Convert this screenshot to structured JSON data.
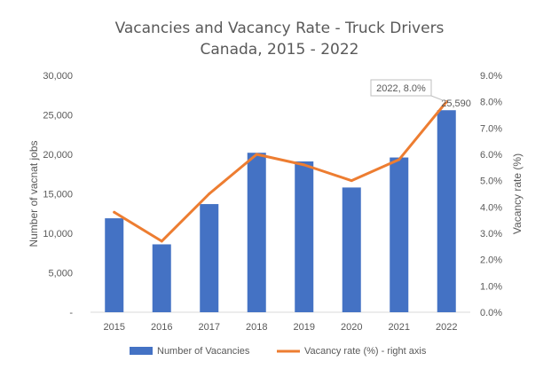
{
  "chart_data": {
    "type": "bar",
    "title": "Vacancies and Vacancy Rate - Truck Drivers",
    "subtitle": "Canada, 2015 - 2022",
    "categories": [
      "2015",
      "2016",
      "2017",
      "2018",
      "2019",
      "2020",
      "2021",
      "2022"
    ],
    "series": [
      {
        "name": "Number of Vacancies",
        "type": "bar",
        "axis": "left",
        "color": "#4472C4",
        "values": [
          11900,
          8600,
          13700,
          20200,
          19100,
          15800,
          19600,
          25590
        ]
      },
      {
        "name": "Vacancy rate (%) - right axis",
        "type": "line",
        "axis": "right",
        "color": "#ED7D31",
        "values": [
          3.8,
          2.7,
          4.5,
          6.0,
          5.6,
          5.0,
          5.8,
          8.0
        ]
      }
    ],
    "ylabel": "Number of vacnat jobs",
    "y2label": "Vacancy rate (%)",
    "ylim": [
      0,
      30000
    ],
    "y2lim": [
      0.0,
      9.0
    ],
    "yticks": [
      "-",
      "5,000",
      "10,000",
      "15,000",
      "20,000",
      "25,000",
      "30,000"
    ],
    "y2ticks": [
      "0.0%",
      "1.0%",
      "2.0%",
      "3.0%",
      "4.0%",
      "5.0%",
      "6.0%",
      "7.0%",
      "8.0%",
      "9.0%"
    ],
    "annotations": {
      "callout": "2022, 8.0%",
      "bar_label": "25,590"
    },
    "grid": false,
    "legend": "bottom"
  }
}
